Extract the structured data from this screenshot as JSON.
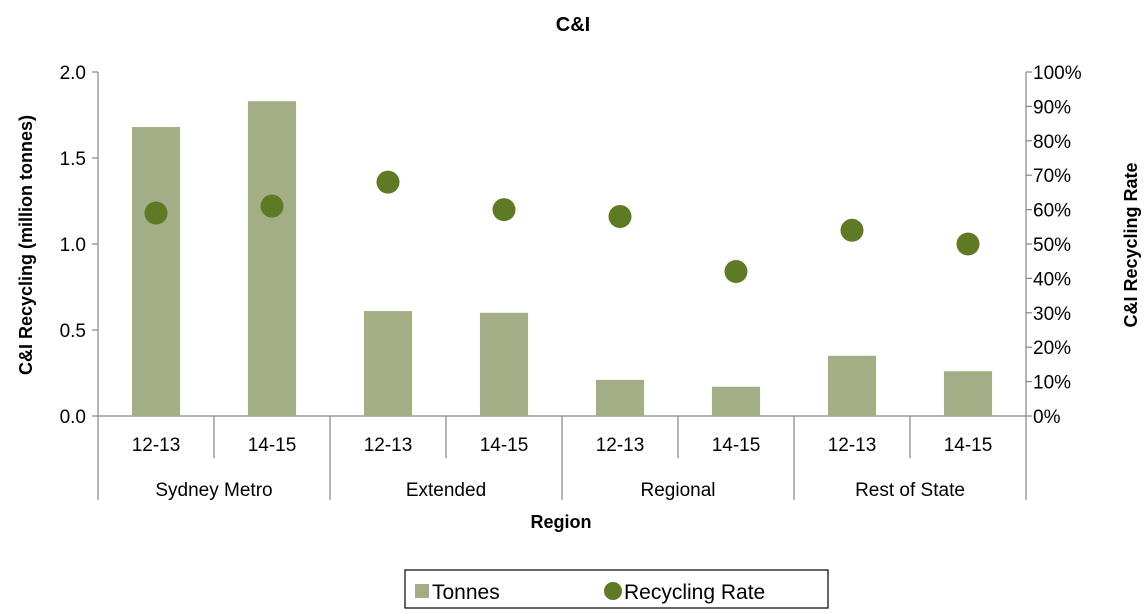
{
  "chart_data": {
    "type": "bar",
    "title": "C&I",
    "xlabel": "Region",
    "ylabel": "C&I Recycling (million tonnes)",
    "y2label": "C&I Recycling Rate",
    "ylim": [
      0,
      2.0
    ],
    "y2lim": [
      0,
      1.0
    ],
    "yticks": [
      "0.0",
      "0.5",
      "1.0",
      "1.5",
      "2.0"
    ],
    "y2ticks": [
      "0%",
      "10%",
      "20%",
      "30%",
      "40%",
      "50%",
      "60%",
      "70%",
      "80%",
      "90%",
      "100%"
    ],
    "groups": [
      "Sydney Metro",
      "Extended",
      "Regional",
      "Rest of State"
    ],
    "categories": [
      "12-13",
      "14-15",
      "12-13",
      "14-15",
      "12-13",
      "14-15",
      "12-13",
      "14-15"
    ],
    "series": [
      {
        "name": "Tonnes",
        "type": "bar",
        "axis": "left",
        "values": [
          1.68,
          1.83,
          0.61,
          0.6,
          0.21,
          0.17,
          0.35,
          0.26
        ]
      },
      {
        "name": "Recycling Rate",
        "type": "scatter",
        "axis": "right",
        "values": [
          0.59,
          0.61,
          0.68,
          0.6,
          0.58,
          0.42,
          0.54,
          0.5
        ]
      }
    ],
    "grid": false,
    "legend": "bottom"
  },
  "colors": {
    "bar": "#a3ad86",
    "dot": "#5e7a24",
    "axis": "#868686"
  }
}
